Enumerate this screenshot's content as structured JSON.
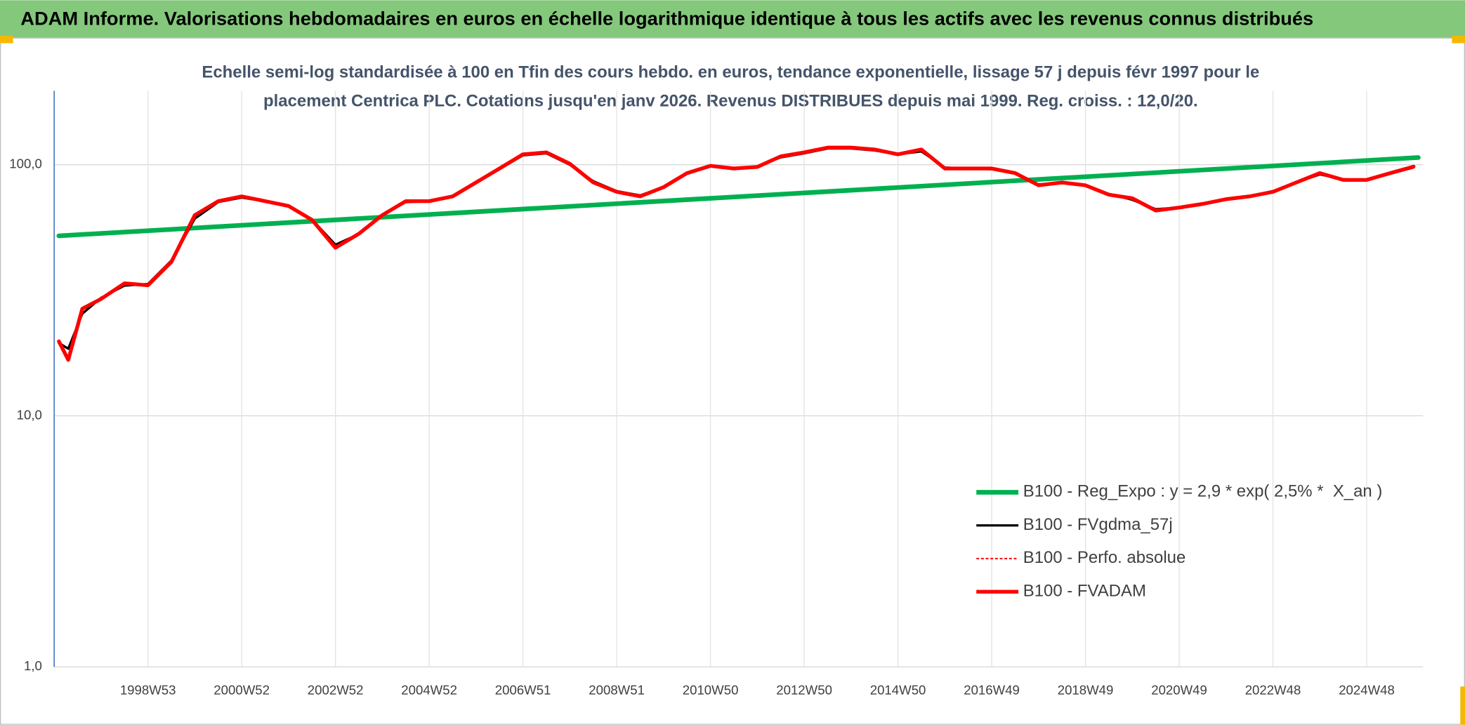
{
  "chart_data": {
    "type": "line",
    "title": "ADAM Informe. Valorisations hebdomadaires en euros en échelle logarithmique identique à tous les actifs avec les revenus connus distribués",
    "subtitle": [
      "Echelle semi-log standardisée à 100 en Tfin des cours hebdo. en euros, tendance exponentielle, lissage 57 j depuis févr 1997 pour le",
      "placement Centrica PLC. Cotations jusqu'en janv 2026. Revenus DISTRIBUES depuis mai 1999. Reg. croiss. : 12,0/20."
    ],
    "log_y": true,
    "grid": true,
    "legend": "right",
    "xlim": [
      1997.0,
      2026.2
    ],
    "xticks": [
      {
        "value": 1999.0,
        "label": "1998W53"
      },
      {
        "value": 2001.0,
        "label": "2000W52"
      },
      {
        "value": 2003.0,
        "label": "2002W52"
      },
      {
        "value": 2005.0,
        "label": "2004W52"
      },
      {
        "value": 2007.0,
        "label": "2006W51"
      },
      {
        "value": 2009.0,
        "label": "2008W51"
      },
      {
        "value": 2011.0,
        "label": "2010W50"
      },
      {
        "value": 2013.0,
        "label": "2012W50"
      },
      {
        "value": 2015.0,
        "label": "2014W50"
      },
      {
        "value": 2017.0,
        "label": "2016W49"
      },
      {
        "value": 2019.0,
        "label": "2018W49"
      },
      {
        "value": 2021.0,
        "label": "2020W49"
      },
      {
        "value": 2023.0,
        "label": "2022W48"
      },
      {
        "value": 2025.0,
        "label": "2024W48"
      }
    ],
    "ylim": [
      1,
      197
    ],
    "yticks": [
      {
        "value": 1,
        "label": "1,0"
      },
      {
        "value": 10,
        "label": "10,0"
      },
      {
        "value": 100,
        "label": "100,0"
      }
    ],
    "x": [
      1997.1,
      1997.3,
      1997.6,
      1998.0,
      1998.5,
      1999.0,
      1999.5,
      2000.0,
      2000.5,
      2001.0,
      2001.5,
      2002.0,
      2002.5,
      2003.0,
      2003.5,
      2004.0,
      2004.5,
      2005.0,
      2005.5,
      2006.0,
      2006.5,
      2007.0,
      2007.5,
      2008.0,
      2008.5,
      2009.0,
      2009.5,
      2010.0,
      2010.5,
      2011.0,
      2011.5,
      2012.0,
      2012.5,
      2013.0,
      2013.5,
      2014.0,
      2014.5,
      2015.0,
      2015.5,
      2016.0,
      2016.5,
      2017.0,
      2017.5,
      2018.0,
      2018.5,
      2019.0,
      2019.5,
      2020.0,
      2020.5,
      2021.0,
      2021.5,
      2022.0,
      2022.5,
      2023.0,
      2023.5,
      2024.0,
      2024.5,
      2025.0,
      2025.5,
      2026.0
    ],
    "series": [
      {
        "name": "B100 - Reg_Expo : y = 2,9 * exp( 2,5% *  X_an )",
        "color": "#00b050",
        "width": 5,
        "x": [
          1997.1,
          2026.1
        ],
        "values": [
          52.1,
          106.8
        ]
      },
      {
        "name": "B100 - FVgdma_57j",
        "color": "#000000",
        "width": 2.5,
        "values": [
          19.5,
          18.5,
          25.5,
          29.5,
          33.0,
          33.5,
          41.5,
          61.0,
          71.0,
          74.0,
          71.5,
          68.5,
          60.5,
          48.0,
          53.0,
          63.0,
          71.0,
          71.5,
          74.5,
          85.0,
          96.0,
          109,
          111,
          100,
          86,
          78.5,
          75.5,
          81.5,
          92.0,
          98.5,
          96.5,
          98.5,
          107,
          111,
          116,
          116,
          114,
          110,
          113,
          97.5,
          96.5,
          96.0,
          92.5,
          83.5,
          84.5,
          82.5,
          76.5,
          72.5,
          66.5,
          67.5,
          69.5,
          72.5,
          75.0,
          78.5,
          85.0,
          91.5,
          87.5,
          87.0,
          92.0,
          97.5
        ]
      },
      {
        "name": "B100 - Perfo. absolue",
        "color": "#ff0000",
        "width": 1.5,
        "dash": "3 2",
        "values": [
          19.8,
          16.7,
          26.7,
          29.2,
          33.7,
          33.1,
          41.0,
          63.0,
          71.6,
          74.8,
          71.6,
          68.5,
          60.3,
          46.7,
          53.1,
          63.0,
          71.6,
          71.6,
          74.8,
          85.0,
          96.6,
          110,
          112,
          100.9,
          85,
          78,
          74.8,
          81.4,
          92.6,
          99,
          96.6,
          98,
          108,
          112,
          117,
          117,
          115,
          110,
          115,
          96.6,
          96.6,
          96.6,
          92.6,
          82.8,
          85,
          82.8,
          76.0,
          73.5,
          65.7,
          67.5,
          69.8,
          72.9,
          74.8,
          78,
          85,
          92.6,
          87,
          87,
          92.6,
          98.3
        ]
      },
      {
        "name": "B100 - FVADAM",
        "color": "#ff0000",
        "width": 4,
        "values": [
          19.8,
          16.7,
          26.7,
          29.2,
          33.7,
          33.1,
          41.0,
          63.0,
          71.6,
          74.8,
          71.6,
          68.5,
          60.3,
          46.7,
          53.1,
          63.0,
          71.6,
          71.6,
          74.8,
          85.0,
          96.6,
          110,
          112,
          100.9,
          85,
          78,
          74.8,
          81.4,
          92.6,
          99,
          96.6,
          98,
          108,
          112,
          117,
          117,
          115,
          110,
          115,
          96.6,
          96.6,
          96.6,
          92.6,
          82.8,
          85,
          82.8,
          76.0,
          73.5,
          65.7,
          67.5,
          69.8,
          72.9,
          74.8,
          78,
          85,
          92.6,
          87,
          87,
          92.6,
          98.3
        ]
      }
    ]
  }
}
